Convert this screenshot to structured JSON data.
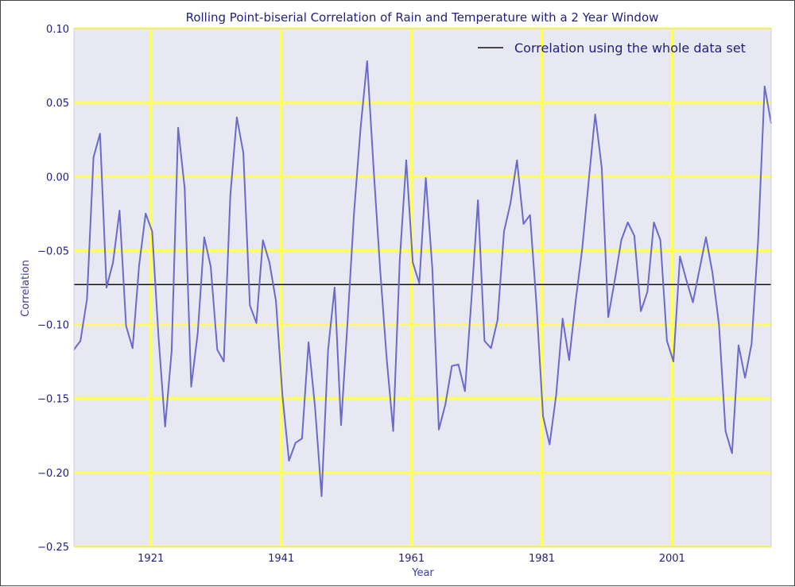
{
  "chart_data": {
    "type": "line",
    "title": "Rolling Point-biserial Correlation of Rain and Temperature with a 2 Year Window",
    "xlabel": "Year",
    "ylabel": "Correlation",
    "xlim": [
      1909.2,
      2016.2
    ],
    "ylim": [
      -0.25,
      0.1
    ],
    "xticks": [
      1921,
      1941,
      1961,
      1981,
      2001
    ],
    "xtick_labels": [
      "1921",
      "1941",
      "1961",
      "1981",
      "2001"
    ],
    "yticks": [
      -0.25,
      -0.2,
      -0.15,
      -0.1,
      -0.05,
      0.0,
      0.05,
      0.1
    ],
    "ytick_labels": [
      "−0.25",
      "−0.20",
      "−0.15",
      "−0.10",
      "−0.05",
      "0.00",
      "0.05",
      "0.10"
    ],
    "grid": true,
    "legend_position": "top-right",
    "series": [
      {
        "x": [
          1909.2,
          1910.2,
          1911.2,
          1912.2,
          1913.2,
          1914.2,
          1915.2,
          1916.2,
          1917.2,
          1918.2,
          1919.2,
          1920.2,
          1921.2,
          1922.2,
          1923.2,
          1924.2,
          1925.2,
          1926.2,
          1927.2,
          1928.2,
          1929.2,
          1930.2,
          1931.2,
          1932.2,
          1933.2,
          1934.2,
          1935.2,
          1936.2,
          1937.2,
          1938.2,
          1939.2,
          1940.2,
          1941.2,
          1942.2,
          1943.2,
          1944.2,
          1945.2,
          1946.2,
          1947.2,
          1948.2,
          1949.2,
          1950.2,
          1951.2,
          1952.2,
          1953.2,
          1954.2,
          1955.2,
          1956.2,
          1957.2,
          1958.2,
          1959.2,
          1960.2,
          1961.2,
          1962.2,
          1963.2,
          1964.2,
          1965.2,
          1966.2,
          1967.2,
          1968.2,
          1969.2,
          1970.2,
          1971.2,
          1972.2,
          1973.2,
          1974.2,
          1975.2,
          1976.2,
          1977.2,
          1978.2,
          1979.2,
          1980.2,
          1981.2,
          1982.2,
          1983.2,
          1984.2,
          1985.2,
          1986.2,
          1987.2,
          1988.2,
          1989.2,
          1990.2,
          1991.2,
          1992.2,
          1993.2,
          1994.2,
          1995.2,
          1996.2,
          1997.2,
          1998.2,
          1999.2,
          2000.2,
          2001.2,
          2002.2,
          2003.2,
          2004.2,
          2005.2,
          2006.2,
          2007.2,
          2008.2,
          2009.2,
          2010.2,
          2011.2,
          2012.2,
          2013.2,
          2014.2,
          2015.2,
          2016.2
        ],
        "values": [
          -0.117,
          -0.111,
          -0.083,
          0.013,
          0.029,
          -0.075,
          -0.058,
          -0.023,
          -0.101,
          -0.116,
          -0.06,
          -0.025,
          -0.037,
          -0.11,
          -0.169,
          -0.118,
          0.033,
          -0.008,
          -0.142,
          -0.106,
          -0.041,
          -0.061,
          -0.117,
          -0.125,
          -0.013,
          0.04,
          0.016,
          -0.087,
          -0.099,
          -0.043,
          -0.058,
          -0.084,
          -0.148,
          -0.192,
          -0.18,
          -0.177,
          -0.112,
          -0.156,
          -0.216,
          -0.117,
          -0.075,
          -0.168,
          -0.098,
          -0.024,
          0.033,
          0.078,
          0.005,
          -0.063,
          -0.123,
          -0.172,
          -0.057,
          0.011,
          -0.058,
          -0.072,
          -0.001,
          -0.062,
          -0.171,
          -0.154,
          -0.128,
          -0.127,
          -0.145,
          -0.083,
          -0.016,
          -0.111,
          -0.116,
          -0.097,
          -0.037,
          -0.018,
          0.011,
          -0.032,
          -0.026,
          -0.087,
          -0.162,
          -0.181,
          -0.148,
          -0.096,
          -0.124,
          -0.084,
          -0.049,
          -0.003,
          0.042,
          0.006,
          -0.095,
          -0.07,
          -0.043,
          -0.031,
          -0.04,
          -0.091,
          -0.078,
          -0.031,
          -0.043,
          -0.111,
          -0.125,
          -0.054,
          -0.07,
          -0.085,
          -0.063,
          -0.041,
          -0.065,
          -0.1,
          -0.172,
          -0.187,
          -0.114,
          -0.136,
          -0.113,
          -0.043,
          0.061,
          0.036
        ]
      }
    ],
    "reference_lines": [
      {
        "name": "Correlation using the whole data set",
        "y": -0.073
      }
    ],
    "colors": {
      "series": "#6a6ac8",
      "reference": "#111111",
      "grid": "#ffff55",
      "plot_background": "#e8e8f2"
    }
  }
}
